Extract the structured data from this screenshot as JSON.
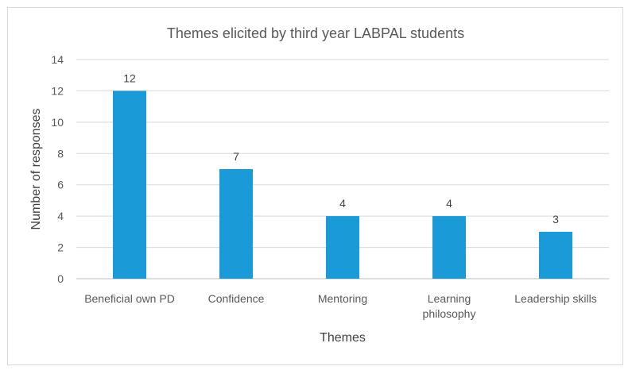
{
  "chart_data": {
    "type": "bar",
    "title": "Themes elicited by third year LABPAL students",
    "xlabel": "Themes",
    "ylabel": "Number of responses",
    "categories": [
      [
        "Beneficial own PD"
      ],
      [
        "Confidence"
      ],
      [
        "Mentoring"
      ],
      [
        "Learning",
        "philosophy"
      ],
      [
        "Leadership skills"
      ]
    ],
    "values": [
      12,
      7,
      4,
      4,
      3
    ],
    "data_labels": [
      "12",
      "7",
      "4",
      "4",
      "3"
    ],
    "yticks": [
      0,
      2,
      4,
      6,
      8,
      10,
      12,
      14
    ],
    "ylim": [
      0,
      14
    ],
    "grid": true,
    "legend": "none",
    "bar_color": "#1a9ad6"
  }
}
